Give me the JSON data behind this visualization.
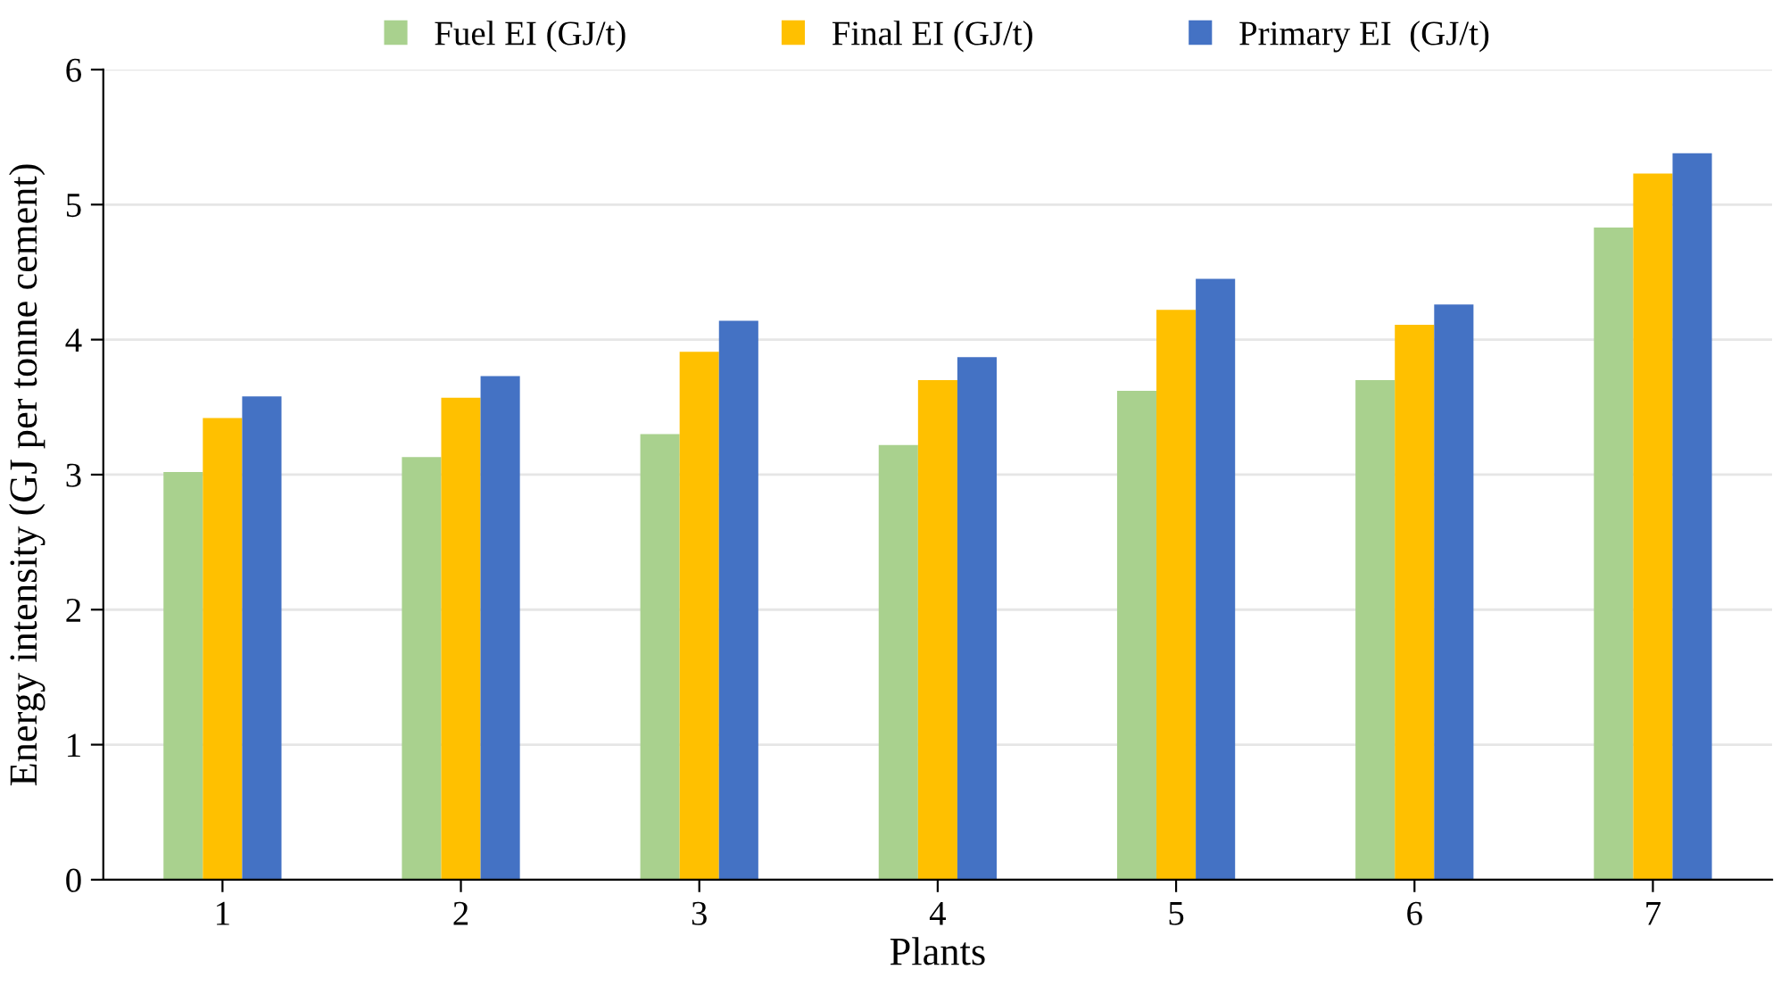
{
  "chart_data": {
    "type": "bar",
    "xlabel": "Plants",
    "ylabel": "Energy intensity (GJ per tonne cement)",
    "categories": [
      "1",
      "2",
      "3",
      "4",
      "5",
      "6",
      "7"
    ],
    "series": [
      {
        "name": "Fuel EI (GJ/t)",
        "color": "#a9d18e",
        "values": [
          3.02,
          3.13,
          3.3,
          3.22,
          3.62,
          3.7,
          4.83
        ]
      },
      {
        "name": "Final EI (GJ/t)",
        "color": "#ffc000",
        "values": [
          3.42,
          3.57,
          3.91,
          3.7,
          4.22,
          4.11,
          5.23
        ]
      },
      {
        "name": "Primary EI  (GJ/t)",
        "color": "#4472c4",
        "values": [
          3.58,
          3.73,
          4.14,
          3.87,
          4.45,
          4.26,
          5.38
        ]
      }
    ],
    "ylim": [
      0,
      6
    ],
    "yticks": [
      0,
      1,
      2,
      3,
      4,
      5,
      6
    ],
    "grid": "y",
    "legend": "top"
  }
}
